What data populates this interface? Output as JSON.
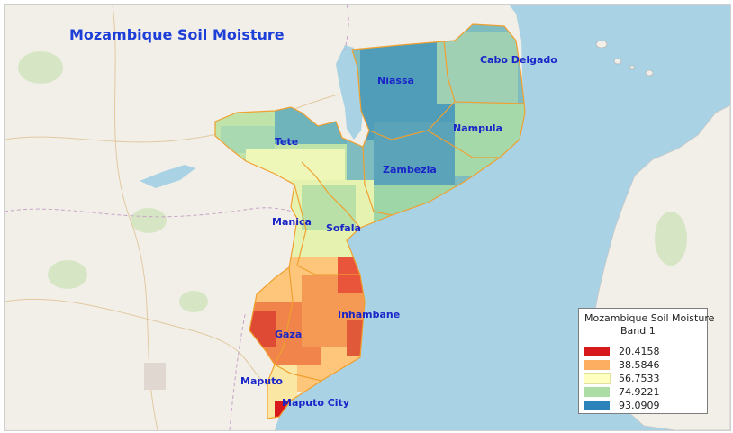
{
  "map": {
    "title": "Mozambique Soil Moisture",
    "provinces": [
      {
        "id": "niassa",
        "label": "Niassa"
      },
      {
        "id": "cabo-delgado",
        "label": "Cabo Delgado"
      },
      {
        "id": "tete",
        "label": "Tete"
      },
      {
        "id": "nampula",
        "label": "Nampula"
      },
      {
        "id": "zambezia",
        "label": "Zambezia"
      },
      {
        "id": "manica",
        "label": "Manica"
      },
      {
        "id": "sofala",
        "label": "Sofala"
      },
      {
        "id": "inhambane",
        "label": "Inhambane"
      },
      {
        "id": "gaza",
        "label": "Gaza"
      },
      {
        "id": "maputo",
        "label": "Maputo"
      },
      {
        "id": "maputo-city",
        "label": "Maputo City"
      }
    ],
    "colors": {
      "ocean": "#a9d2e4",
      "land": "#f2efe9",
      "boundary": "#f0a030",
      "label": "#1a25c8",
      "title": "#1d3fd8"
    }
  },
  "legend": {
    "title": "Mozambique Soil Moisture",
    "band": "Band 1",
    "classes": [
      {
        "value": "20.4158",
        "color": "#d7191c"
      },
      {
        "value": "38.5846",
        "color": "#fdae61"
      },
      {
        "value": "56.7533",
        "color": "#ffffbf"
      },
      {
        "value": "74.9221",
        "color": "#abdda4"
      },
      {
        "value": "93.0909",
        "color": "#2b83ba"
      }
    ]
  }
}
